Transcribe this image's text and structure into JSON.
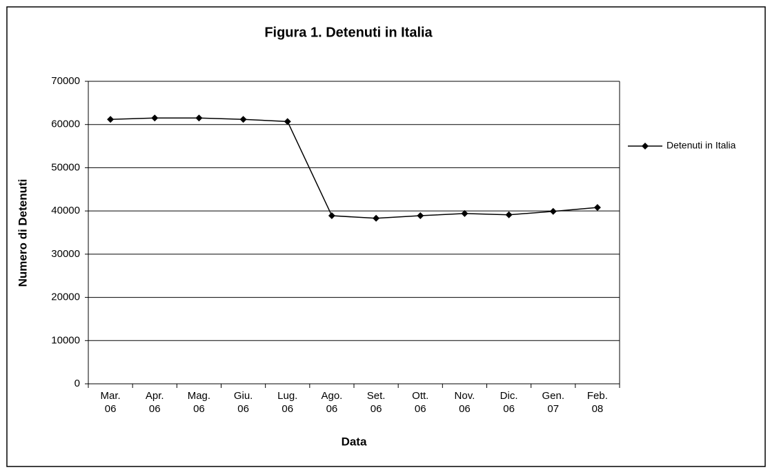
{
  "chart_data": {
    "type": "line",
    "title": "Figura 1. Detenuti in Italia",
    "x_label": "Data",
    "y_label": "Numero di Detenuti",
    "categories": [
      "Mar.\n06",
      "Apr.\n06",
      "Mag.\n06",
      "Giu.\n06",
      "Lug.\n06",
      "Ago.\n06",
      "Set.\n06",
      "Ott.\n06",
      "Nov.\n06",
      "Dic.\n06",
      "Gen.\n07",
      "Feb.\n08"
    ],
    "series": [
      {
        "name": "Detenuti in Italia",
        "color": "#000000",
        "values": [
          61200,
          61500,
          61500,
          61200,
          60700,
          38900,
          38300,
          38900,
          39400,
          39100,
          39900,
          40800
        ]
      }
    ],
    "ylim": [
      0,
      70000
    ],
    "yticks": [
      0,
      10000,
      20000,
      30000,
      40000,
      50000,
      60000,
      70000
    ],
    "grid": true,
    "legend": "right"
  }
}
